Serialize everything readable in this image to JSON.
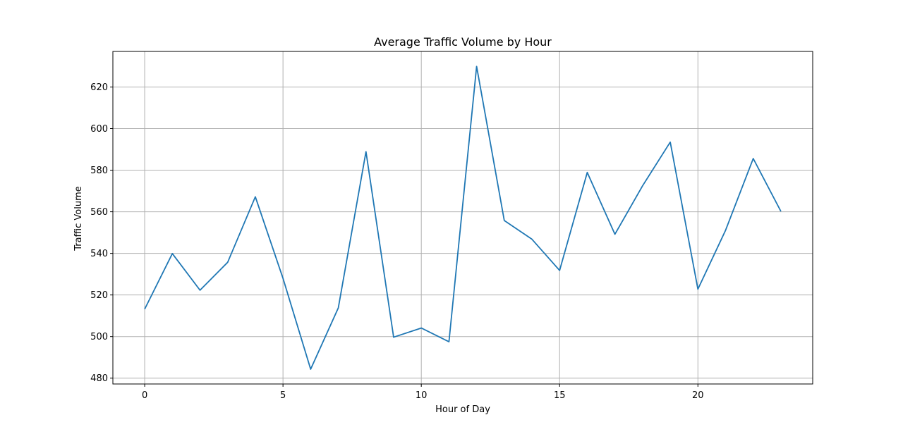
{
  "chart_data": {
    "type": "line",
    "title": "Average Traffic Volume by Hour",
    "xlabel": "Hour of Day",
    "ylabel": "Traffic Volume",
    "x": [
      0,
      1,
      2,
      3,
      4,
      5,
      6,
      7,
      8,
      9,
      10,
      11,
      12,
      13,
      14,
      15,
      16,
      17,
      18,
      19,
      20,
      21,
      22,
      23
    ],
    "series": [
      {
        "values": [
          513.2,
          539.9,
          522.3,
          535.7,
          567.2,
          528.0,
          484.3,
          513.8,
          588.9,
          499.7,
          504.1,
          497.5,
          629.9,
          555.8,
          546.8,
          531.8,
          578.9,
          549.2,
          572.5,
          593.5,
          522.8,
          551.1,
          585.6,
          560.2
        ],
        "color": "#1f77b4"
      }
    ],
    "xlim": [
      -1.15,
      24.15
    ],
    "ylim": [
      477.2,
      637.1
    ],
    "xticks": [
      0,
      5,
      10,
      15,
      20
    ],
    "yticks": [
      480,
      500,
      520,
      540,
      560,
      580,
      600,
      620
    ],
    "grid": true
  }
}
